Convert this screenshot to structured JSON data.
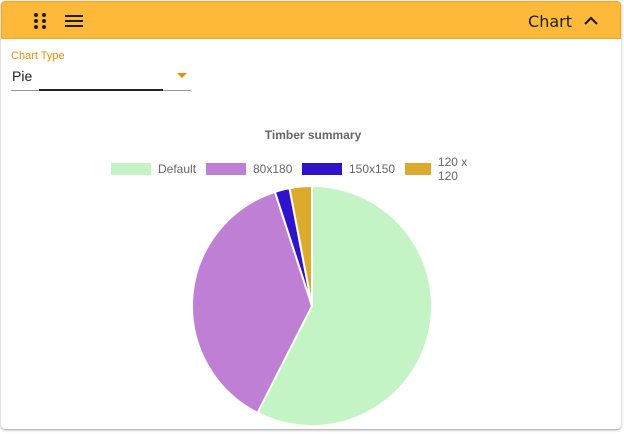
{
  "header": {
    "title": "Chart",
    "icons": [
      "drag-handle-icon",
      "menu-icon",
      "chevron-up-icon"
    ],
    "background": "#FFB93A"
  },
  "form": {
    "chart_type_label": "Chart Type",
    "chart_type_value": "Pie",
    "accent": "#F08C00"
  },
  "chart_data": {
    "type": "pie",
    "title": "Timber summary",
    "legend_position": "top",
    "series": [
      {
        "name": "Default",
        "value": 57.5,
        "color": "#C4F4C6"
      },
      {
        "name": "80x180",
        "value": 37.5,
        "color": "#BF7FD5"
      },
      {
        "name": "150x150",
        "value": 2.0,
        "color": "#2F13CC"
      },
      {
        "name": "120 x 120",
        "value": 3.0,
        "color": "#DCAA2D"
      }
    ]
  }
}
